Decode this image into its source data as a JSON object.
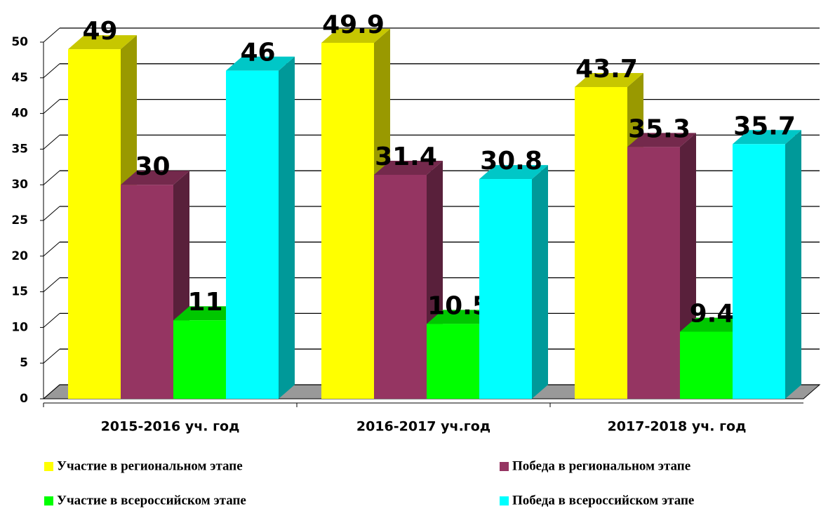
{
  "chart_data": {
    "type": "bar3d",
    "categories": [
      "2015-2016 уч. год",
      "2016-2017 уч.год",
      "2017-2018 уч. год"
    ],
    "series": [
      {
        "name": "Участие в региональном этапе",
        "color": "#ffff00",
        "values": [
          49,
          49.9,
          43.7
        ]
      },
      {
        "name": "Победа в региональном этапе",
        "color": "#953562",
        "values": [
          30,
          31.4,
          35.3
        ]
      },
      {
        "name": "Участие в всероссийском этапе",
        "color": "#00ff00",
        "values": [
          11,
          10.5,
          9.4
        ]
      },
      {
        "name": "Победа в всероссийском этапе",
        "color": "#00ffff",
        "values": [
          46,
          30.8,
          35.7
        ]
      }
    ],
    "ylim": [
      0,
      50
    ],
    "yticks": [
      0,
      5,
      10,
      15,
      20,
      25,
      30,
      35,
      40,
      45,
      50
    ],
    "grid": true
  }
}
